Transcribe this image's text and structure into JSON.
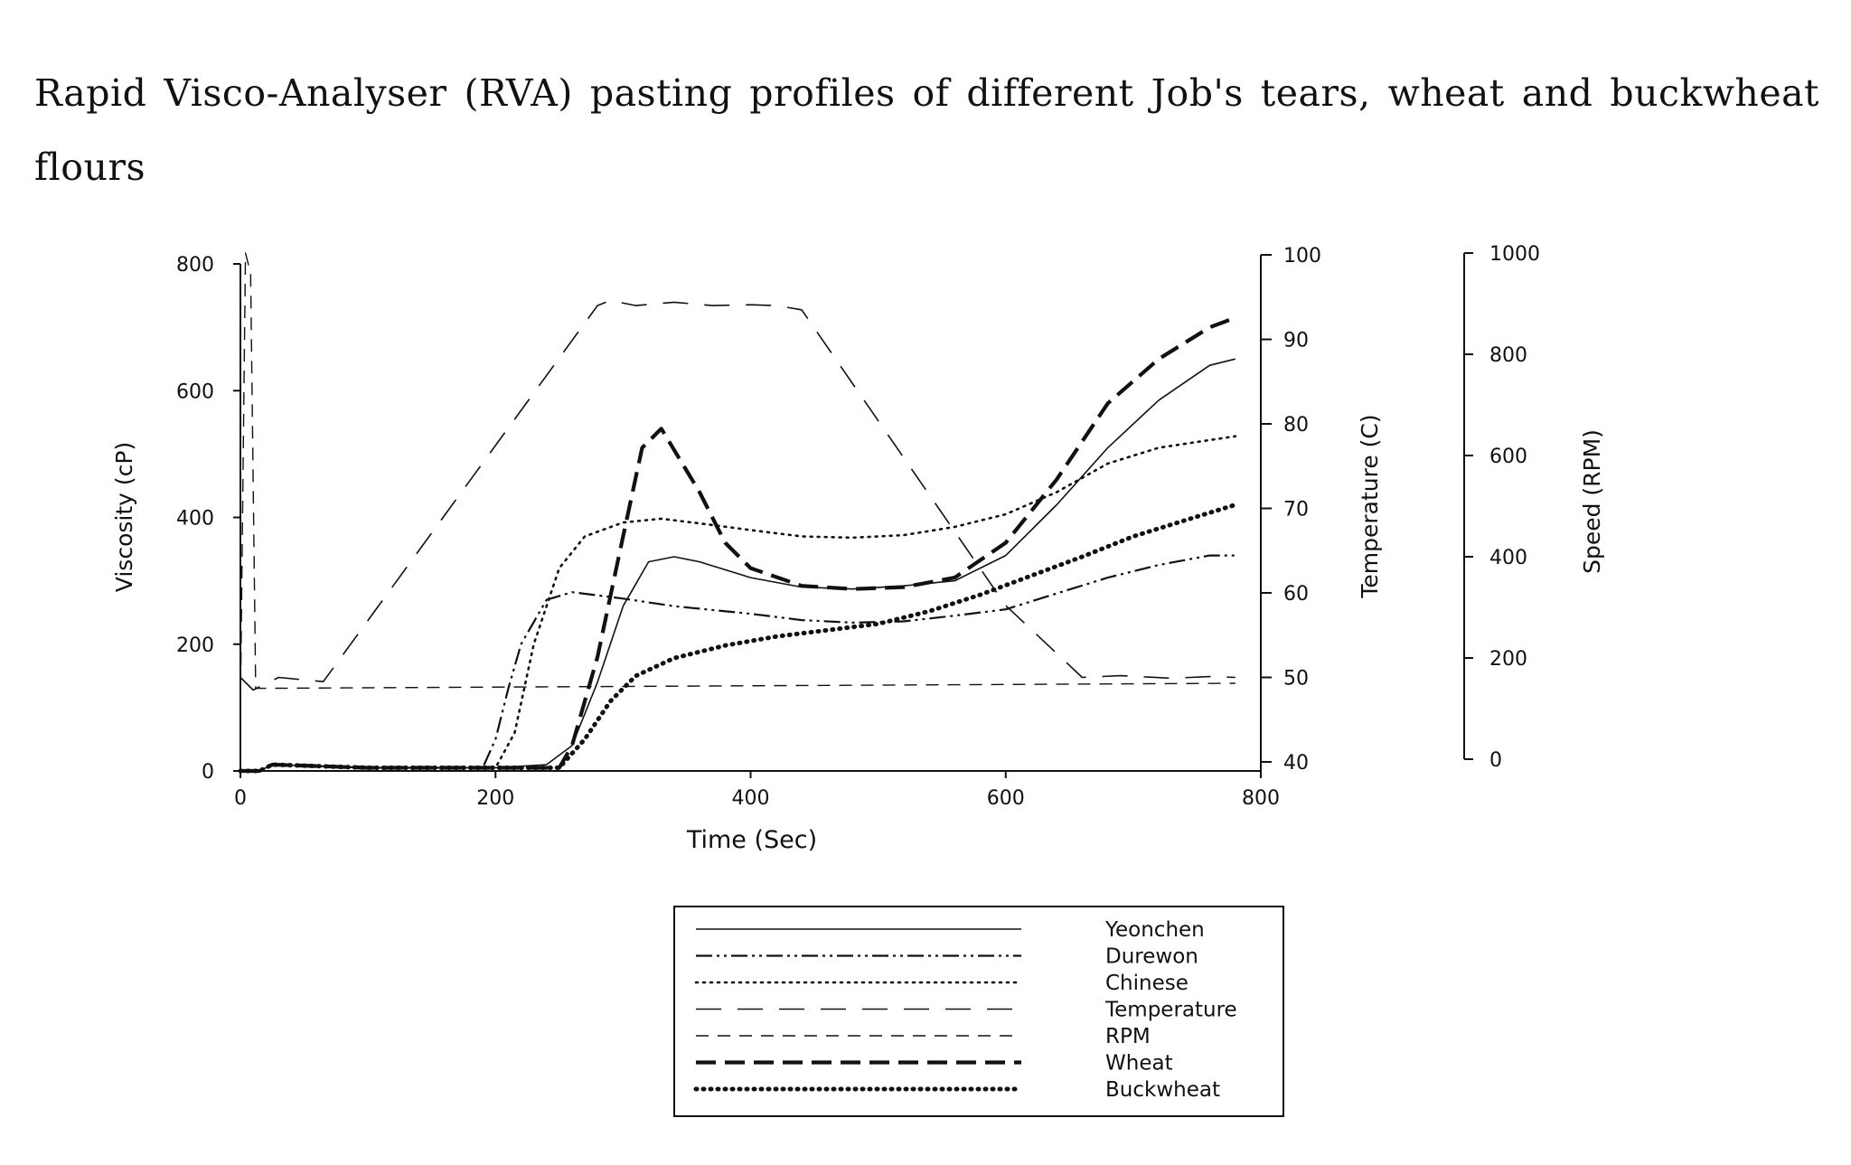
{
  "caption": "Rapid Visco-Analyser (RVA) pasting profiles of different Job's tears, wheat and buckwheat flours",
  "chart_data": {
    "type": "line",
    "title": "Rapid Visco-Analyser (RVA) pasting profiles of different Job's tears, wheat and buckwheat flours",
    "xlabel": "Time (Sec)",
    "ylabel": "Viscosity (cP)",
    "y2label": "Temperature (C)",
    "y3label": "Speed (RPM)",
    "xlim": [
      0,
      800
    ],
    "ylim": [
      0,
      800
    ],
    "y2lim": [
      40,
      100
    ],
    "y3lim": [
      0,
      1000
    ],
    "x_ticks": [
      "0",
      "200",
      "400",
      "600",
      "800"
    ],
    "y_ticks": [
      "0",
      "200",
      "400",
      "600",
      "800"
    ],
    "y2_ticks": [
      "40",
      "50",
      "60",
      "70",
      "80",
      "90",
      "100"
    ],
    "y3_ticks": [
      "0",
      "200",
      "400",
      "600",
      "800",
      "1000"
    ],
    "grid": false,
    "legend_position": "bottom",
    "series": [
      {
        "name": "Yeonchen",
        "axis": "viscosity",
        "style": "solid",
        "x": [
          0,
          15,
          25,
          100,
          200,
          240,
          260,
          280,
          300,
          320,
          340,
          360,
          400,
          440,
          480,
          520,
          560,
          600,
          640,
          680,
          720,
          760,
          780
        ],
        "y": [
          0,
          0,
          10,
          5,
          5,
          10,
          40,
          140,
          260,
          330,
          338,
          330,
          305,
          290,
          287,
          292,
          300,
          340,
          420,
          510,
          585,
          640,
          650
        ]
      },
      {
        "name": "Durewon",
        "axis": "viscosity",
        "style": "dash-dot-dot",
        "x": [
          0,
          15,
          25,
          100,
          190,
          200,
          210,
          220,
          240,
          260,
          300,
          340,
          400,
          440,
          480,
          520,
          560,
          600,
          640,
          680,
          720,
          760,
          780
        ],
        "y": [
          0,
          0,
          10,
          5,
          5,
          50,
          130,
          200,
          270,
          282,
          272,
          260,
          248,
          238,
          234,
          236,
          245,
          255,
          280,
          305,
          325,
          340,
          340
        ]
      },
      {
        "name": "Chinese",
        "axis": "viscosity",
        "style": "dotted",
        "x": [
          0,
          15,
          25,
          100,
          200,
          215,
          230,
          250,
          270,
          300,
          330,
          370,
          400,
          440,
          480,
          520,
          560,
          600,
          640,
          680,
          720,
          760,
          780
        ],
        "y": [
          0,
          0,
          10,
          5,
          5,
          60,
          200,
          320,
          370,
          392,
          398,
          388,
          380,
          370,
          368,
          372,
          385,
          405,
          440,
          485,
          510,
          522,
          528
        ]
      },
      {
        "name": "Temperature",
        "axis": "temperature",
        "style": "long-dash",
        "x": [
          0,
          10,
          30,
          65,
          280,
          290,
          310,
          340,
          370,
          400,
          420,
          440,
          600,
          660,
          690,
          730,
          760,
          780
        ],
        "y": [
          50,
          48.5,
          50,
          49.5,
          94,
          94.6,
          94,
          94.4,
          94,
          94.1,
          94,
          93.5,
          58.5,
          50,
          50.2,
          49.9,
          50.1,
          50
        ]
      },
      {
        "name": "RPM",
        "axis": "speed",
        "style": "dashed",
        "x": [
          0,
          4,
          8,
          12,
          780
        ],
        "y": [
          100,
          1000,
          960,
          140,
          150
        ]
      },
      {
        "name": "Wheat",
        "axis": "viscosity",
        "style": "bold-dash",
        "x": [
          0,
          15,
          25,
          100,
          200,
          250,
          260,
          280,
          300,
          315,
          330,
          360,
          380,
          400,
          440,
          480,
          520,
          560,
          600,
          640,
          680,
          720,
          760,
          780
        ],
        "y": [
          0,
          0,
          10,
          5,
          5,
          5,
          40,
          180,
          370,
          510,
          540,
          440,
          360,
          320,
          292,
          287,
          290,
          305,
          360,
          460,
          580,
          650,
          700,
          715
        ]
      },
      {
        "name": "Buckwheat",
        "axis": "viscosity",
        "style": "bold-dotted",
        "x": [
          0,
          15,
          25,
          100,
          200,
          250,
          270,
          290,
          310,
          340,
          380,
          420,
          460,
          500,
          540,
          580,
          620,
          660,
          700,
          740,
          780
        ],
        "y": [
          0,
          0,
          10,
          5,
          5,
          5,
          50,
          110,
          150,
          178,
          198,
          212,
          222,
          232,
          252,
          278,
          308,
          338,
          370,
          395,
          420
        ]
      }
    ]
  }
}
